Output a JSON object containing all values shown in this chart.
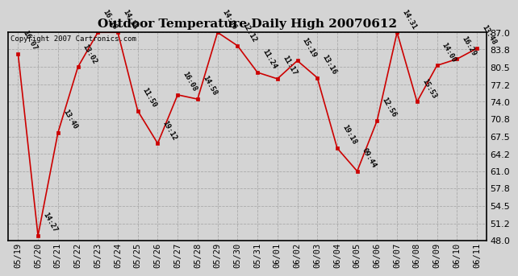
{
  "title": "Outdoor Temperature Daily High 20070612",
  "copyright": "Copyright 2007 Cartronics.com",
  "background_color": "#d4d4d4",
  "plot_bg_color": "#d4d4d4",
  "line_color": "#cc0000",
  "marker_color": "#cc0000",
  "grid_color": "#aaaaaa",
  "ylim": [
    48.0,
    87.0
  ],
  "yticks": [
    48.0,
    51.2,
    54.5,
    57.8,
    61.0,
    64.2,
    67.5,
    70.8,
    74.0,
    77.2,
    80.5,
    83.8,
    87.0
  ],
  "dates": [
    "05/19",
    "05/20",
    "05/21",
    "05/22",
    "05/23",
    "05/24",
    "05/25",
    "05/26",
    "05/27",
    "05/28",
    "05/29",
    "05/30",
    "05/31",
    "06/01",
    "06/02",
    "06/03",
    "06/04",
    "06/05",
    "06/06",
    "06/07",
    "06/08",
    "06/09",
    "06/10",
    "06/11"
  ],
  "values": [
    83.0,
    48.9,
    68.2,
    80.5,
    87.0,
    87.0,
    72.3,
    66.2,
    75.3,
    74.5,
    87.0,
    84.5,
    79.5,
    78.3,
    81.7,
    78.5,
    65.3,
    61.0,
    70.5,
    87.0,
    74.0,
    80.8,
    82.0,
    84.0
  ],
  "labels": [
    "16:07",
    "14:27",
    "13:40",
    "13:02",
    "16:18",
    "14:35",
    "11:50",
    "19:12",
    "16:08",
    "14:58",
    "14:06",
    "12:12",
    "11:24",
    "11:17",
    "15:19",
    "13:16",
    "19:18",
    "09:44",
    "12:56",
    "14:31",
    "15:53",
    "14:00",
    "16:29",
    "13:48"
  ]
}
